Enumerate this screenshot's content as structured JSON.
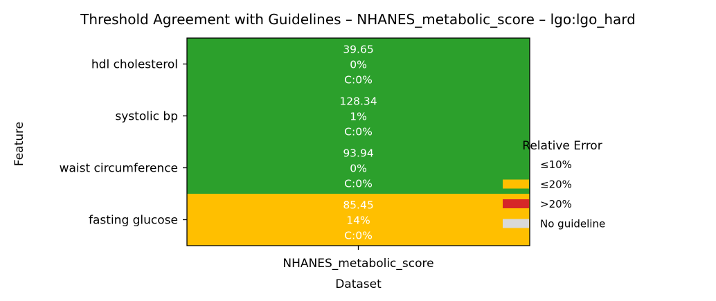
{
  "chart_data": {
    "type": "heatmap",
    "title": "Threshold Agreement with Guidelines – NHANES_metabolic_score – lgo:lgo_hard",
    "xlabel": "Dataset",
    "ylabel": "Feature",
    "columns": [
      "NHANES_metabolic_score"
    ],
    "rows": [
      {
        "feature": "hdl cholesterol",
        "threshold": "39.65",
        "rel_error": "0%",
        "coverage": "C:0%",
        "category": "≤10%"
      },
      {
        "feature": "systolic bp",
        "threshold": "128.34",
        "rel_error": "1%",
        "coverage": "C:0%",
        "category": "≤10%"
      },
      {
        "feature": "waist circumference",
        "threshold": "93.94",
        "rel_error": "0%",
        "coverage": "C:0%",
        "category": "≤10%"
      },
      {
        "feature": "fasting glucose",
        "threshold": "85.45",
        "rel_error": "14%",
        "coverage": "C:0%",
        "category": "≤20%"
      }
    ],
    "legend": {
      "title": "Relative Error",
      "position": "right",
      "entries": [
        {
          "label": "≤10%",
          "color": "#2ca02c"
        },
        {
          "label": "≤20%",
          "color": "#ffbf00"
        },
        {
          "label": ">20%",
          "color": "#d62728"
        },
        {
          "label": "No guideline",
          "color": "#d9d9d9"
        }
      ]
    }
  }
}
